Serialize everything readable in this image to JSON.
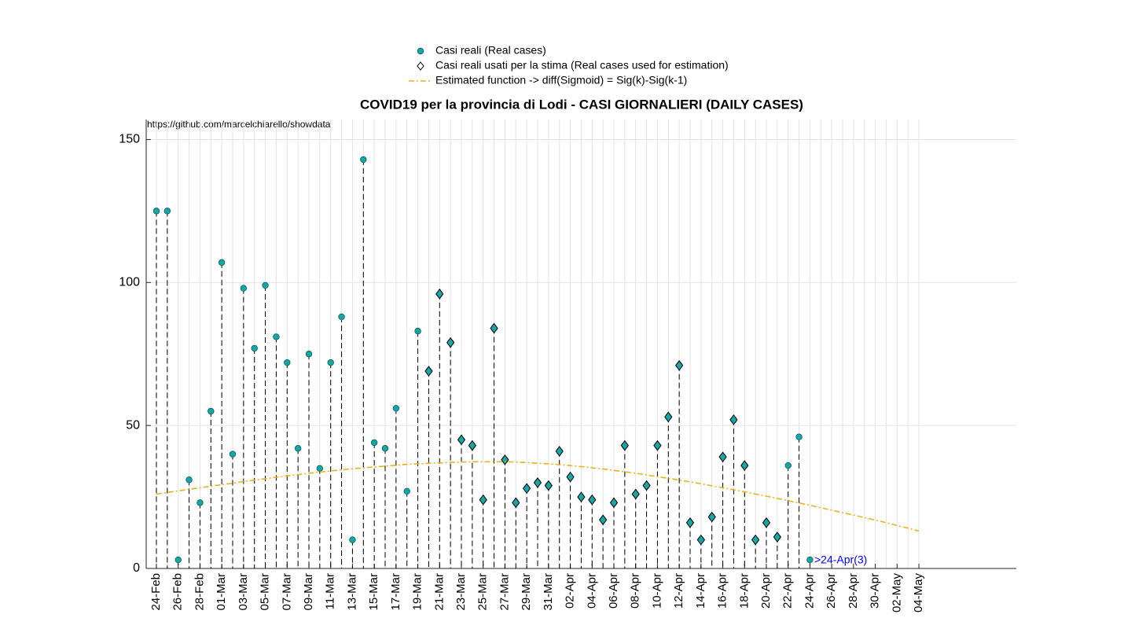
{
  "chart_data": {
    "type": "stem",
    "title": "COVID19 per la provincia di Lodi - CASI GIORNALIERI (DAILY CASES)",
    "source": "https://github.com/marcelchiarello/showdata",
    "annotation": {
      "text": ">24-Apr(3)",
      "color": "#0000ff"
    },
    "categories": [
      "24-Feb",
      null,
      "26-Feb",
      null,
      "28-Feb",
      null,
      "01-Mar",
      null,
      "03-Mar",
      null,
      "05-Mar",
      null,
      "07-Mar",
      null,
      "09-Mar",
      null,
      "11-Mar",
      null,
      "13-Mar",
      null,
      "15-Mar",
      null,
      "17-Mar",
      null,
      "19-Mar",
      null,
      "21-Mar",
      null,
      "23-Mar",
      null,
      "25-Mar",
      null,
      "27-Mar",
      null,
      "29-Mar",
      null,
      "31-Mar",
      null,
      "02-Apr",
      null,
      "04-Apr",
      null,
      "06-Apr",
      null,
      "08-Apr",
      null,
      "10-Apr",
      null,
      "12-Apr",
      null,
      "14-Apr",
      null,
      "16-Apr",
      null,
      "18-Apr",
      null,
      "20-Apr",
      null,
      "22-Apr",
      null,
      "24-Apr",
      null,
      "26-Apr",
      null,
      "28-Apr",
      null,
      "30-Apr",
      null,
      "02-May",
      null,
      "04-May"
    ],
    "series": [
      {
        "name": "Casi reali (Real cases)",
        "marker": "circle",
        "color": "#17a6a6",
        "values": [
          125,
          125,
          3,
          31,
          23,
          55,
          107,
          40,
          98,
          77,
          99,
          81,
          72,
          42,
          75,
          35,
          72,
          88,
          10,
          143,
          44,
          42,
          56,
          27,
          83,
          69,
          96,
          79,
          45,
          43,
          24,
          84,
          38,
          23,
          28,
          30,
          29,
          41,
          32,
          25,
          24,
          17,
          23,
          43,
          26,
          29,
          43,
          53,
          71,
          16,
          10,
          18,
          39,
          52,
          36,
          10,
          16,
          11,
          36,
          46,
          3,
          null,
          null,
          null,
          null,
          null,
          null,
          null,
          null,
          null,
          null
        ]
      },
      {
        "name": "Casi reali usati per la stima (Real cases used for estimation)",
        "marker": "diamond",
        "color": "#17a6a6",
        "values": [
          null,
          null,
          null,
          null,
          null,
          null,
          null,
          null,
          null,
          null,
          null,
          null,
          null,
          null,
          null,
          null,
          null,
          null,
          null,
          null,
          null,
          null,
          null,
          null,
          null,
          69,
          96,
          79,
          45,
          43,
          24,
          84,
          38,
          23,
          28,
          30,
          29,
          41,
          32,
          25,
          24,
          17,
          23,
          43,
          26,
          29,
          43,
          53,
          71,
          16,
          10,
          18,
          39,
          52,
          36,
          10,
          16,
          11,
          null,
          null,
          null,
          null,
          null,
          null,
          null,
          null,
          null,
          null,
          null,
          null,
          null
        ]
      },
      {
        "name": "Estimated function -> diff(Sigmoid) = Sig(k)-Sig(k-1)",
        "marker": "dashed-line",
        "color": "#edb120",
        "values": [
          26,
          26.6,
          27.1,
          27.7,
          28.2,
          28.8,
          29.3,
          29.8,
          30.4,
          30.9,
          31.4,
          31.9,
          32.4,
          32.8,
          33.3,
          33.7,
          34.1,
          34.5,
          34.9,
          35.2,
          35.5,
          35.8,
          36.1,
          36.4,
          36.6,
          36.8,
          36.9,
          37.1,
          37.2,
          37.3,
          37.3,
          37.3,
          37.3,
          37.2,
          37,
          36.8,
          36.6,
          36.3,
          36,
          35.6,
          35.2,
          34.8,
          34.3,
          33.8,
          33.3,
          32.7,
          32.1,
          31.5,
          30.9,
          30.3,
          29.6,
          28.9,
          28.2,
          27.5,
          26.8,
          26,
          25.3,
          24.5,
          23.7,
          22.9,
          22.1,
          21.2,
          20.4,
          19.5,
          18.7,
          17.8,
          16.9,
          16,
          15,
          14.1,
          13.1
        ]
      }
    ],
    "ylim": [
      0,
      157
    ],
    "yticks": [
      0,
      50,
      100,
      150
    ],
    "grid": true
  }
}
